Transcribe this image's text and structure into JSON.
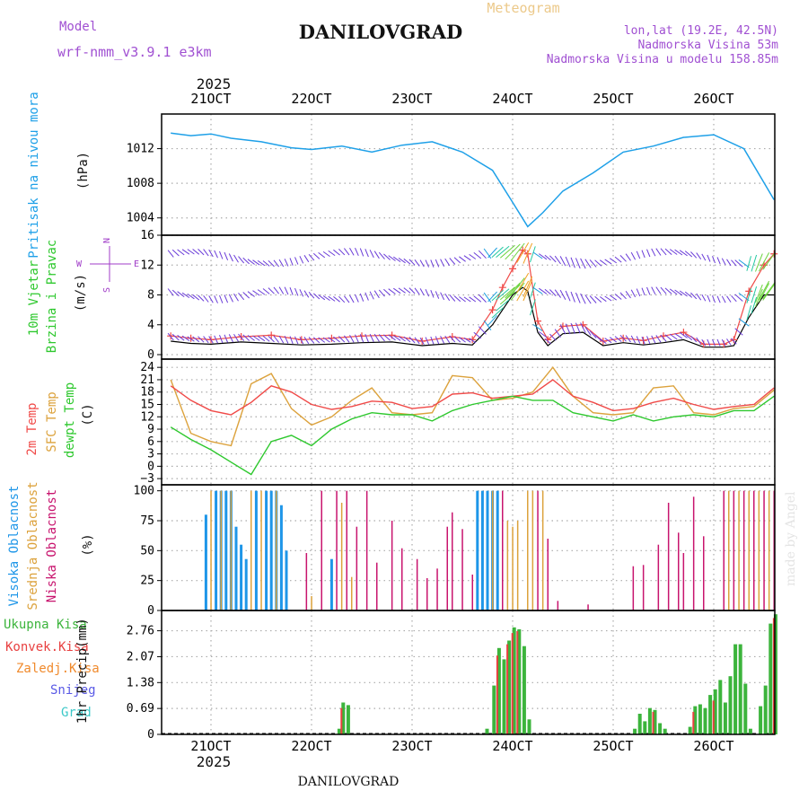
{
  "header": {
    "model_label": "Model",
    "model_name": "wrf-nmm_v3.9.1 e3km",
    "title": "DANILOVGRAD",
    "subtitle": "Meteogram",
    "location": "lon,lat (19.2E, 42.5N)",
    "elevation": "Nadmorska Visina 53m",
    "model_elevation": "Nadmorska Visina u modelu 158.85m",
    "footer_title": "DANILOVGRAD",
    "watermark": "made by Angel"
  },
  "colors": {
    "pressure": "#1ea0e8",
    "temp2m": "#f04a48",
    "sfc_temp": "#dca23c",
    "dewpoint": "#2ec82e",
    "high_cloud": "#1e96e8",
    "mid_cloud": "#dca23c",
    "low_cloud": "#c8146e",
    "total_precip": "#3cb43c",
    "conv_precip": "#e84040",
    "wind_label": "#2ec82e",
    "wind_ms_label": "#a03cc8"
  },
  "chart_data": [
    {
      "type": "line",
      "panel": "pressure",
      "ylabel": "Pritisak na nivou mora",
      "unit": "(hPa)",
      "ylim": [
        1002,
        1016
      ],
      "yticks": [
        1004,
        1008,
        1012
      ],
      "x_day": [
        20.6,
        20.8,
        21.0,
        21.2,
        21.5,
        21.8,
        22.0,
        22.3,
        22.6,
        22.9,
        23.2,
        23.5,
        23.8,
        24.0,
        24.15,
        24.3,
        24.5,
        24.8,
        25.1,
        25.4,
        25.7,
        26.0,
        26.3,
        26.6
      ],
      "values": [
        1013.8,
        1013.5,
        1013.7,
        1013.2,
        1012.8,
        1012.1,
        1011.9,
        1012.3,
        1011.6,
        1012.4,
        1012.8,
        1011.6,
        1009.5,
        1005.8,
        1003.0,
        1004.6,
        1007.1,
        1009.2,
        1011.6,
        1012.3,
        1013.3,
        1013.6,
        1012.0,
        1006.1
      ]
    },
    {
      "type": "line",
      "panel": "wind",
      "ylabel": "10m Vjetar",
      "ylabel2": "Brzina i Pravac",
      "unit": "(m/s)",
      "compass": [
        "N",
        "E",
        "S",
        "W"
      ],
      "ylim": [
        -0.6,
        16
      ],
      "yticks": [
        0,
        4,
        8,
        12,
        16
      ],
      "x_day": [
        20.6,
        20.8,
        21.0,
        21.3,
        21.6,
        21.9,
        22.2,
        22.5,
        22.8,
        23.1,
        23.4,
        23.6,
        23.8,
        23.9,
        24.0,
        24.1,
        24.15,
        24.25,
        24.35,
        24.5,
        24.7,
        24.9,
        25.1,
        25.3,
        25.5,
        25.7,
        25.9,
        26.1,
        26.2,
        26.35,
        26.5,
        26.6
      ],
      "mean_speed": [
        1.8,
        1.5,
        1.4,
        1.7,
        1.5,
        1.3,
        1.4,
        1.6,
        1.7,
        1.2,
        1.5,
        1.3,
        4.0,
        6.0,
        8.0,
        9.0,
        8.5,
        3.0,
        1.2,
        2.8,
        3.0,
        1.2,
        1.6,
        1.3,
        1.6,
        2.0,
        1.0,
        1.0,
        1.2,
        5.0,
        8.0,
        8.0
      ],
      "gust_speed": [
        2.5,
        2.2,
        2.0,
        2.4,
        2.6,
        2.0,
        2.2,
        2.5,
        2.6,
        1.8,
        2.4,
        2.0,
        6.0,
        9.0,
        11.5,
        14.0,
        13.5,
        4.5,
        2.0,
        3.8,
        4.0,
        1.8,
        2.2,
        1.9,
        2.5,
        3.0,
        1.4,
        1.4,
        2.0,
        8.5,
        12.0,
        13.5
      ],
      "mean_row_level": 8,
      "gust_row_level": 13
    },
    {
      "type": "line",
      "panel": "temperature",
      "ylabel": "2m Temp",
      "ylabel2": "SFC Temp",
      "ylabel3": "dewpt Temp",
      "unit": "(C)",
      "ylim": [
        -4.5,
        26
      ],
      "yticks": [
        -3,
        0,
        3,
        6,
        9,
        12,
        15,
        18,
        21,
        24
      ],
      "x_day": [
        20.6,
        20.8,
        21.0,
        21.2,
        21.4,
        21.6,
        21.8,
        22.0,
        22.2,
        22.4,
        22.6,
        22.8,
        23.0,
        23.2,
        23.4,
        23.6,
        23.8,
        24.0,
        24.2,
        24.4,
        24.6,
        24.8,
        25.0,
        25.2,
        25.4,
        25.6,
        25.8,
        26.0,
        26.2,
        26.4,
        26.6
      ],
      "temp_2m": [
        19.5,
        16.0,
        13.5,
        12.5,
        15.5,
        19.5,
        18.0,
        15.0,
        13.8,
        14.5,
        15.8,
        15.5,
        14.0,
        14.5,
        17.5,
        17.8,
        16.5,
        17.0,
        17.5,
        21.0,
        17.0,
        15.5,
        13.5,
        14.0,
        15.5,
        16.5,
        15.0,
        13.8,
        14.5,
        15.0,
        19.0
      ],
      "sfc_temp": [
        21.0,
        8.0,
        6.0,
        5.0,
        20.0,
        22.5,
        14.0,
        10.0,
        12.0,
        16.0,
        19.0,
        13.0,
        12.5,
        13.0,
        22.0,
        21.5,
        16.0,
        16.5,
        18.0,
        24.0,
        17.0,
        13.0,
        12.5,
        13.0,
        19.0,
        19.5,
        13.0,
        12.5,
        14.0,
        14.5,
        18.5
      ],
      "dewpoint": [
        9.5,
        6.5,
        4.0,
        1.0,
        -2.0,
        6.0,
        7.5,
        5.0,
        9.0,
        11.5,
        13.0,
        12.5,
        12.5,
        11.0,
        13.5,
        15.0,
        16.0,
        17.0,
        16.0,
        16.0,
        13.0,
        12.0,
        11.0,
        12.5,
        11.0,
        12.0,
        12.5,
        12.0,
        13.5,
        13.5,
        17.0
      ]
    },
    {
      "type": "bar",
      "panel": "clouds",
      "ylabel": "Visoka Oblacnost",
      "ylabel2": "Srednja Oblacnost",
      "ylabel3": "Niska Oblacnost",
      "unit": "(%)",
      "ylim": [
        0,
        105
      ],
      "yticks": [
        0,
        25,
        50,
        75,
        100
      ],
      "high": [
        [
          20.95,
          80
        ],
        [
          21.05,
          100
        ],
        [
          21.1,
          100
        ],
        [
          21.15,
          100
        ],
        [
          21.2,
          100
        ],
        [
          21.25,
          70
        ],
        [
          21.3,
          55
        ],
        [
          21.35,
          43
        ],
        [
          21.45,
          100
        ],
        [
          21.55,
          100
        ],
        [
          21.6,
          100
        ],
        [
          21.65,
          100
        ],
        [
          21.7,
          88
        ],
        [
          21.75,
          50
        ],
        [
          22.2,
          43
        ],
        [
          23.65,
          100
        ],
        [
          23.7,
          100
        ],
        [
          23.75,
          100
        ],
        [
          23.8,
          100
        ],
        [
          23.85,
          100
        ]
      ],
      "mid": [
        [
          21.0,
          100
        ],
        [
          21.1,
          100
        ],
        [
          21.2,
          100
        ],
        [
          21.4,
          100
        ],
        [
          21.5,
          100
        ],
        [
          21.65,
          100
        ],
        [
          22.0,
          12
        ],
        [
          22.3,
          90
        ],
        [
          22.4,
          28
        ],
        [
          23.8,
          100
        ],
        [
          23.95,
          75
        ],
        [
          24.0,
          70
        ],
        [
          24.05,
          75
        ],
        [
          24.15,
          100
        ],
        [
          24.2,
          100
        ],
        [
          24.3,
          100
        ],
        [
          26.15,
          100
        ],
        [
          26.25,
          100
        ],
        [
          26.35,
          100
        ],
        [
          26.45,
          100
        ],
        [
          26.55,
          100
        ],
        [
          26.6,
          100
        ]
      ],
      "low": [
        [
          21.95,
          48
        ],
        [
          22.1,
          100
        ],
        [
          22.25,
          100
        ],
        [
          22.35,
          100
        ],
        [
          22.45,
          70
        ],
        [
          22.55,
          100
        ],
        [
          22.65,
          40
        ],
        [
          22.8,
          75
        ],
        [
          22.9,
          52
        ],
        [
          23.05,
          43
        ],
        [
          23.15,
          27
        ],
        [
          23.25,
          35
        ],
        [
          23.35,
          70
        ],
        [
          23.4,
          82
        ],
        [
          23.5,
          68
        ],
        [
          23.6,
          30
        ],
        [
          23.9,
          100
        ],
        [
          24.25,
          100
        ],
        [
          24.35,
          60
        ],
        [
          24.45,
          8
        ],
        [
          24.75,
          5
        ],
        [
          25.2,
          37
        ],
        [
          25.3,
          38
        ],
        [
          25.45,
          55
        ],
        [
          25.55,
          90
        ],
        [
          25.65,
          65
        ],
        [
          25.7,
          48
        ],
        [
          25.8,
          95
        ],
        [
          25.9,
          62
        ],
        [
          26.1,
          100
        ],
        [
          26.2,
          100
        ],
        [
          26.3,
          100
        ],
        [
          26.4,
          100
        ],
        [
          26.5,
          100
        ],
        [
          26.6,
          100
        ]
      ]
    },
    {
      "type": "bar",
      "panel": "precipitation",
      "legend": [
        "Ukupna Kisa",
        "Konvek.Kisa",
        "Zaledj.Kisa",
        "Snijeg",
        "Grad"
      ],
      "legend_colors": [
        "#3cb43c",
        "#e84040",
        "#f08a2c",
        "#5a5ae6",
        "#3cc8c8"
      ],
      "ylabel": "1hr Precip",
      "unit": "(mm)",
      "ylim": [
        0,
        3.3
      ],
      "yticks": [
        0,
        0.69,
        1.38,
        2.07,
        2.76
      ],
      "total": [
        [
          22.28,
          0.15
        ],
        [
          22.32,
          0.85
        ],
        [
          22.37,
          0.78
        ],
        [
          23.75,
          0.15
        ],
        [
          23.82,
          1.3
        ],
        [
          23.87,
          2.3
        ],
        [
          23.92,
          2.0
        ],
        [
          23.97,
          2.5
        ],
        [
          24.02,
          2.85
        ],
        [
          24.07,
          2.8
        ],
        [
          24.12,
          2.35
        ],
        [
          24.17,
          0.4
        ],
        [
          25.22,
          0.15
        ],
        [
          25.27,
          0.55
        ],
        [
          25.32,
          0.35
        ],
        [
          25.37,
          0.7
        ],
        [
          25.42,
          0.65
        ],
        [
          25.47,
          0.3
        ],
        [
          25.52,
          0.15
        ],
        [
          25.77,
          0.2
        ],
        [
          25.82,
          0.75
        ],
        [
          25.87,
          0.8
        ],
        [
          25.92,
          0.7
        ],
        [
          25.97,
          1.05
        ],
        [
          26.02,
          1.2
        ],
        [
          26.07,
          1.45
        ],
        [
          26.12,
          0.85
        ],
        [
          26.17,
          1.55
        ],
        [
          26.22,
          2.4
        ],
        [
          26.27,
          2.4
        ],
        [
          26.32,
          1.35
        ],
        [
          26.37,
          0.15
        ],
        [
          26.47,
          0.75
        ],
        [
          26.52,
          1.3
        ],
        [
          26.57,
          2.95
        ],
        [
          26.62,
          3.2
        ]
      ],
      "convective": [
        [
          22.32,
          0.7
        ],
        [
          23.87,
          2.1
        ],
        [
          23.97,
          2.4
        ],
        [
          24.02,
          2.7
        ],
        [
          24.07,
          2.75
        ],
        [
          25.42,
          0.6
        ],
        [
          25.82,
          0.6
        ],
        [
          26.02,
          0.9
        ],
        [
          26.62,
          3.1
        ]
      ]
    }
  ],
  "x_axis": {
    "year": "2025",
    "ticks": [
      {
        "day": 21,
        "label": "21OCT"
      },
      {
        "day": 22,
        "label": "22OCT"
      },
      {
        "day": 23,
        "label": "23OCT"
      },
      {
        "day": 24,
        "label": "24OCT"
      },
      {
        "day": 25,
        "label": "25OCT"
      },
      {
        "day": 26,
        "label": "26OCT"
      }
    ]
  }
}
